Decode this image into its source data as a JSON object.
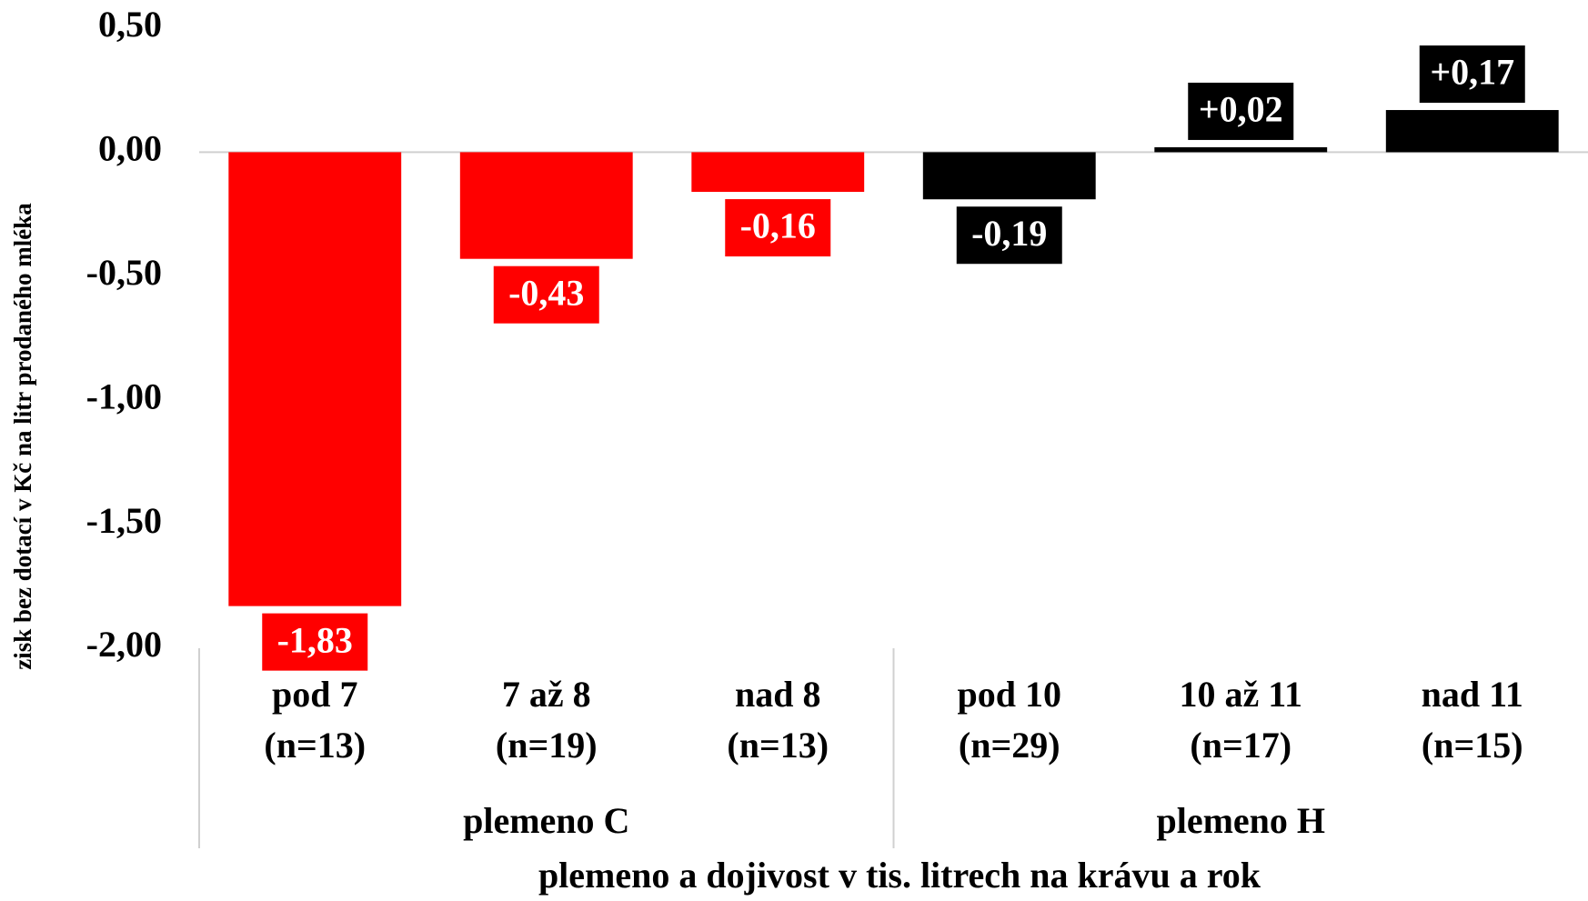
{
  "chart_data": {
    "type": "bar",
    "y_axis_label": "zisk bez dotací v Kč na litr prodaného mléka",
    "x_axis_label": "plemeno a dojivost v tis. litrech na krávu a rok",
    "categories": [
      [
        "pod 7",
        "(n=13)"
      ],
      [
        "7 až 8",
        "(n=19)"
      ],
      [
        "nad 8",
        "(n=13)"
      ],
      [
        "pod 10",
        "(n=29)"
      ],
      [
        "10 až 11",
        "(n=17)"
      ],
      [
        "nad 11",
        "(n=15)"
      ]
    ],
    "groups": [
      {
        "name": "plemeno C",
        "size": 3
      },
      {
        "name": "plemeno H",
        "size": 3
      }
    ],
    "values": [
      -1.83,
      -0.43,
      -0.16,
      -0.19,
      0.02,
      0.17
    ],
    "value_labels": [
      "-1,83",
      "-0,43",
      "-0,16",
      "-0,19",
      "+0,02",
      "+0,17"
    ],
    "colors": [
      "#ff0000",
      "#ff0000",
      "#ff0000",
      "#000000",
      "#000000",
      "#000000"
    ],
    "ylim": [
      -2,
      0.5
    ],
    "yticks": [
      {
        "value": 0.5,
        "label": "0,50"
      },
      {
        "value": 0,
        "label": "0,00"
      },
      {
        "value": -0.5,
        "label": "-0,50"
      },
      {
        "value": -1,
        "label": "-1,00"
      },
      {
        "value": -1.5,
        "label": "-1,50"
      },
      {
        "value": -2,
        "label": "-2,00"
      }
    ]
  }
}
